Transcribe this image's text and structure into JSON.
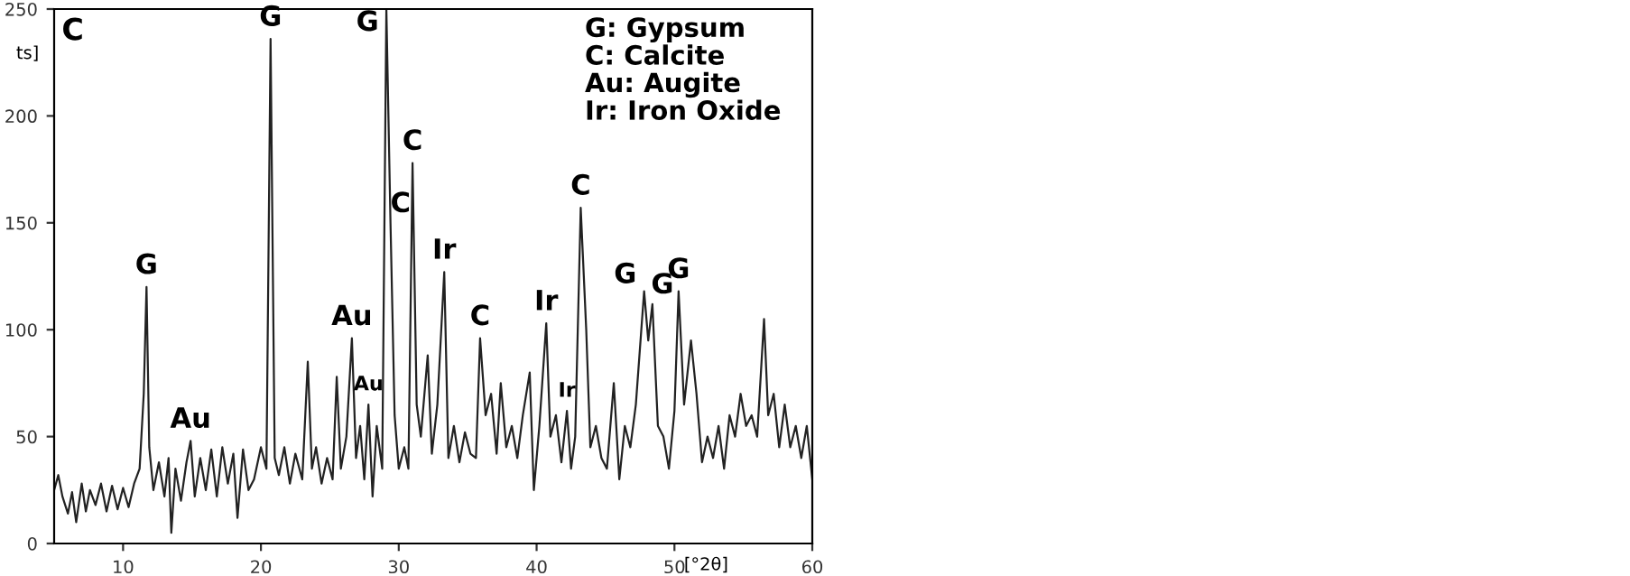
{
  "chart_data": {
    "type": "line",
    "xlabel": "[°2θ]",
    "ylabel": "ts]",
    "xlim": [
      5,
      60
    ],
    "xticks": [
      10,
      20,
      30,
      40,
      50,
      60
    ],
    "ylim": [
      0,
      250
    ],
    "yticks": [
      0,
      50,
      100,
      150,
      200,
      250
    ],
    "grid": false,
    "legend": false,
    "marker": "none",
    "line_style": "solid",
    "series": [
      {
        "color": "#222222",
        "x": [
          5,
          5.3,
          5.6,
          6,
          6.3,
          6.6,
          7,
          7.3,
          7.6,
          8,
          8.4,
          8.8,
          9.2,
          9.6,
          10,
          10.4,
          10.8,
          11.2,
          11.5,
          11.7,
          11.9,
          12.2,
          12.6,
          13,
          13.3,
          13.5,
          13.8,
          14.2,
          14.6,
          14.9,
          15.2,
          15.6,
          16,
          16.4,
          16.8,
          17.2,
          17.6,
          18,
          18.3,
          18.7,
          19.1,
          19.5,
          20,
          20.4,
          20.7,
          21,
          21.3,
          21.7,
          22.1,
          22.5,
          23,
          23.4,
          23.7,
          24,
          24.4,
          24.8,
          25.2,
          25.5,
          25.8,
          26.2,
          26.6,
          26.9,
          27.2,
          27.5,
          27.8,
          28.1,
          28.4,
          28.8,
          29.1,
          29.4,
          29.7,
          30,
          30.4,
          30.7,
          31,
          31.3,
          31.6,
          32.1,
          32.4,
          32.8,
          33.3,
          33.6,
          34,
          34.4,
          34.8,
          35.2,
          35.6,
          35.9,
          36.3,
          36.7,
          37.1,
          37.4,
          37.8,
          38.2,
          38.6,
          39,
          39.5,
          39.8,
          40.2,
          40.7,
          41,
          41.4,
          41.8,
          42.2,
          42.5,
          42.8,
          43.2,
          43.6,
          43.9,
          44.3,
          44.7,
          45.1,
          45.6,
          46,
          46.4,
          46.8,
          47.2,
          47.8,
          48.1,
          48.4,
          48.8,
          49.2,
          49.6,
          50,
          50.3,
          50.7,
          51.2,
          51.6,
          52,
          52.4,
          52.8,
          53.2,
          53.6,
          54,
          54.4,
          54.8,
          55.2,
          55.6,
          56,
          56.5,
          56.8,
          57.2,
          57.6,
          58,
          58.4,
          58.8,
          59.2,
          59.6,
          60
        ],
        "values": [
          25,
          32,
          22,
          14,
          24,
          10,
          28,
          15,
          25,
          18,
          28,
          15,
          27,
          16,
          26,
          17,
          28,
          35,
          70,
          120,
          45,
          25,
          38,
          22,
          40,
          5,
          35,
          20,
          38,
          48,
          22,
          40,
          25,
          44,
          22,
          45,
          28,
          42,
          12,
          44,
          25,
          30,
          45,
          35,
          236,
          40,
          32,
          45,
          28,
          42,
          30,
          85,
          35,
          45,
          28,
          40,
          30,
          78,
          35,
          50,
          96,
          40,
          55,
          30,
          65,
          22,
          55,
          35,
          250,
          150,
          60,
          35,
          45,
          35,
          178,
          65,
          50,
          88,
          42,
          65,
          127,
          40,
          55,
          38,
          52,
          42,
          40,
          96,
          60,
          70,
          42,
          75,
          45,
          55,
          40,
          60,
          80,
          25,
          55,
          103,
          50,
          60,
          38,
          62,
          35,
          50,
          157,
          100,
          45,
          55,
          40,
          35,
          75,
          30,
          55,
          45,
          65,
          118,
          95,
          112,
          55,
          50,
          35,
          62,
          118,
          65,
          95,
          70,
          38,
          50,
          40,
          55,
          35,
          60,
          50,
          70,
          55,
          60,
          50,
          105,
          60,
          70,
          45,
          65,
          45,
          55,
          40,
          55,
          30
        ]
      }
    ],
    "annotations": [
      "C",
      "G: Gypsum\nC: Calcite\nAu: Augite\nIr: Iron Oxide",
      {
        "text": "G",
        "x": 11.7,
        "y": 120
      },
      {
        "text": "Au",
        "x": 14.9,
        "y": 48
      },
      {
        "text": "G",
        "x": 20.7,
        "y": 236
      },
      {
        "text": "Au",
        "x": 26.6,
        "y": 96
      },
      {
        "text": "Au",
        "x": 27.8,
        "y": 65
      },
      {
        "text": "G",
        "x": 29.1,
        "y": 236
      },
      {
        "text": "C",
        "x": 29.4,
        "y": 150
      },
      {
        "text": "C",
        "x": 31.0,
        "y": 178
      },
      {
        "text": "Ir",
        "x": 33.3,
        "y": 127
      },
      {
        "text": "C",
        "x": 35.9,
        "y": 96
      },
      {
        "text": "Ir",
        "x": 40.7,
        "y": 103
      },
      {
        "text": "Ir",
        "x": 42.2,
        "y": 62
      },
      {
        "text": "C",
        "x": 43.2,
        "y": 157
      },
      {
        "text": "G",
        "x": 47.8,
        "y": 118
      },
      {
        "text": "G",
        "x": 48.4,
        "y": 112
      },
      {
        "text": "G",
        "x": 50.3,
        "y": 118
      }
    ]
  }
}
